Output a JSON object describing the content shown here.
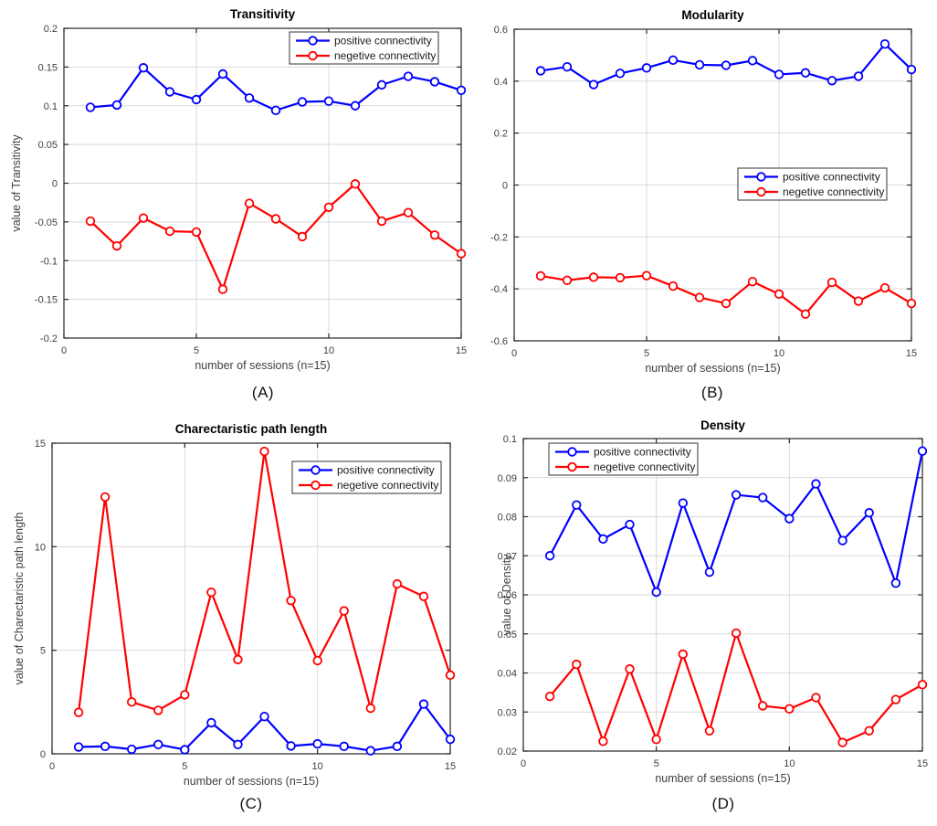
{
  "page": {
    "background": "#ffffff"
  },
  "colors": {
    "positive": "#0000ff",
    "negative": "#ff0000",
    "grid": "#d9d9d9",
    "axis_box": "#262626",
    "tick_label": "#404040",
    "axis_label": "#404040",
    "title": "#000000",
    "legend_border": "#333333",
    "legend_bg": "#ffffff",
    "marker_fill": "#ffffff"
  },
  "legend_labels": {
    "positive": "positive connectivity",
    "negative": "negetive connectivity"
  },
  "captions": {
    "a": "(A)",
    "b": "(B)",
    "c": "(C)",
    "d": "(D)"
  },
  "chart_data": [
    {
      "id": "transitivity",
      "type": "line",
      "title": "Transitivity",
      "caption": "(A)",
      "xlabel": "number of sessions (n=15)",
      "ylabel": "value of Transitivity",
      "xlim": [
        0,
        15
      ],
      "ylim": [
        -0.2,
        0.2
      ],
      "xticks": [
        0,
        5,
        10,
        15
      ],
      "xtick_labels": [
        "0",
        "5",
        "10",
        "15"
      ],
      "yticks": [
        -0.2,
        -0.15,
        -0.1,
        -0.05,
        0,
        0.05,
        0.1,
        0.15,
        0.2
      ],
      "ytick_labels": [
        "-0.2",
        "-0.15",
        "-0.1",
        "-0.05",
        "0",
        "0.05",
        "0.1",
        "0.15",
        "0.2"
      ],
      "grid": true,
      "legend_position": "top-right",
      "x": [
        1,
        2,
        3,
        4,
        5,
        6,
        7,
        8,
        9,
        10,
        11,
        12,
        13,
        14,
        15
      ],
      "series": [
        {
          "name": "positive connectivity",
          "color": "#0000ff",
          "values": [
            0.098,
            0.101,
            0.149,
            0.118,
            0.108,
            0.141,
            0.11,
            0.094,
            0.105,
            0.106,
            0.1,
            0.127,
            0.138,
            0.131,
            0.12
          ]
        },
        {
          "name": "negetive connectivity",
          "color": "#ff0000",
          "values": [
            -0.049,
            -0.081,
            -0.045,
            -0.062,
            -0.063,
            -0.137,
            -0.026,
            -0.046,
            -0.069,
            -0.031,
            -0.001,
            -0.049,
            -0.038,
            -0.067,
            -0.091
          ]
        }
      ]
    },
    {
      "id": "modularity",
      "type": "line",
      "title": "Modularity",
      "caption": "(B)",
      "xlabel": "number of sessions (n=15)",
      "ylabel": "",
      "xlim": [
        0,
        15
      ],
      "ylim": [
        -0.6,
        0.6
      ],
      "xticks": [
        0,
        5,
        10,
        15
      ],
      "xtick_labels": [
        "0",
        "5",
        "10",
        "15"
      ],
      "yticks": [
        -0.6,
        -0.4,
        -0.2,
        0,
        0.2,
        0.4,
        0.6
      ],
      "ytick_labels": [
        "-0.6",
        "-0.4",
        "-0.2",
        "0",
        "0.2",
        "0.4",
        "0.6"
      ],
      "grid": true,
      "legend_position": "mid-right",
      "x": [
        1,
        2,
        3,
        4,
        5,
        6,
        7,
        8,
        9,
        10,
        11,
        12,
        13,
        14,
        15
      ],
      "series": [
        {
          "name": "positive connectivity",
          "color": "#0000ff",
          "values": [
            0.44,
            0.455,
            0.387,
            0.43,
            0.451,
            0.481,
            0.463,
            0.461,
            0.479,
            0.426,
            0.432,
            0.402,
            0.419,
            0.543,
            0.445
          ]
        },
        {
          "name": "negetive connectivity",
          "color": "#ff0000",
          "values": [
            -0.35,
            -0.367,
            -0.355,
            -0.357,
            -0.349,
            -0.389,
            -0.433,
            -0.456,
            -0.372,
            -0.42,
            -0.497,
            -0.375,
            -0.447,
            -0.396,
            -0.456
          ]
        }
      ]
    },
    {
      "id": "path-length",
      "type": "line",
      "title": "Charectaristic path length",
      "caption": "(C)",
      "xlabel": "number of sessions (n=15)",
      "ylabel": "value of Charectaristic path length",
      "xlim": [
        0,
        15
      ],
      "ylim": [
        0,
        15
      ],
      "xticks": [
        0,
        5,
        10,
        15
      ],
      "xtick_labels": [
        "0",
        "5",
        "10",
        "15"
      ],
      "yticks": [
        0,
        5,
        10,
        15
      ],
      "ytick_labels": [
        "0",
        "5",
        "10",
        "15"
      ],
      "grid": true,
      "legend_position": "top-right",
      "x": [
        1,
        2,
        3,
        4,
        5,
        6,
        7,
        8,
        9,
        10,
        11,
        12,
        13,
        14,
        15
      ],
      "series": [
        {
          "name": "positive connectivity",
          "color": "#0000ff",
          "values": [
            0.33,
            0.36,
            0.22,
            0.45,
            0.2,
            1.5,
            0.45,
            1.8,
            0.38,
            0.48,
            0.36,
            0.15,
            0.36,
            2.4,
            0.7
          ]
        },
        {
          "name": "negetive connectivity",
          "color": "#ff0000",
          "values": [
            2.0,
            12.4,
            2.5,
            2.1,
            2.85,
            7.8,
            4.55,
            14.6,
            7.4,
            4.5,
            6.9,
            2.2,
            8.2,
            7.6,
            3.8
          ]
        }
      ]
    },
    {
      "id": "density",
      "type": "line",
      "title": "Density",
      "caption": "(D)",
      "xlabel": "number of sessions (n=15)",
      "ylabel": "value of Density",
      "xlim": [
        0,
        15
      ],
      "ylim": [
        0.02,
        0.1
      ],
      "xticks": [
        0,
        5,
        10,
        15
      ],
      "xtick_labels": [
        "0",
        "5",
        "10",
        "15"
      ],
      "yticks": [
        0.02,
        0.03,
        0.04,
        0.05,
        0.06,
        0.07,
        0.08,
        0.09,
        0.1
      ],
      "ytick_labels": [
        "0.02",
        "0.03",
        "0.04",
        "0.05",
        "0.06",
        "0.07",
        "0.08",
        "0.09",
        "0.1"
      ],
      "grid": true,
      "legend_position": "top-left",
      "x": [
        1,
        2,
        3,
        4,
        5,
        6,
        7,
        8,
        9,
        10,
        11,
        12,
        13,
        14,
        15
      ],
      "series": [
        {
          "name": "positive connectivity",
          "color": "#0000ff",
          "values": [
            0.07,
            0.083,
            0.0743,
            0.078,
            0.0607,
            0.0835,
            0.0658,
            0.0856,
            0.0849,
            0.0795,
            0.0884,
            0.0739,
            0.081,
            0.063,
            0.0968
          ]
        },
        {
          "name": "negetive connectivity",
          "color": "#ff0000",
          "values": [
            0.034,
            0.0422,
            0.0225,
            0.041,
            0.023,
            0.0448,
            0.0252,
            0.0502,
            0.0316,
            0.0308,
            0.0337,
            0.0222,
            0.0252,
            0.0332,
            0.037
          ]
        }
      ]
    }
  ]
}
